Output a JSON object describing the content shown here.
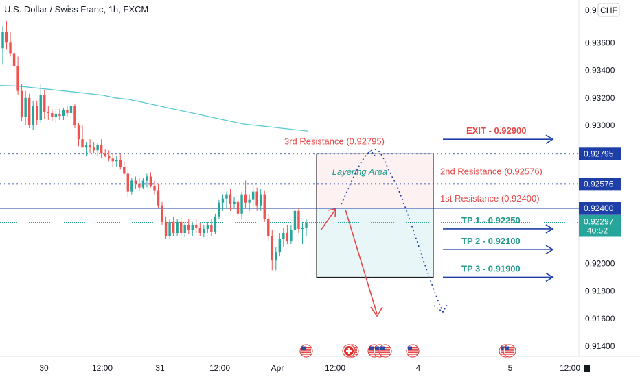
{
  "header": {
    "symbol_title": "U.S. Dollar / Swiss Franc, 1h, FXCM",
    "currency_button": "CHF"
  },
  "colors": {
    "up": "#26a69a",
    "down": "#ef5350",
    "level_blue": "#1e3fa8",
    "ma_line": "#5cc9d1",
    "resistance_text": "#e54848",
    "tp_text": "#1f9a8a",
    "layering_text": "#1f9a8a"
  },
  "chart_data": {
    "type": "candlestick",
    "ylim": [
      0.9135,
      0.9385
    ],
    "y_ticks": [
      "0.93600",
      "0.93400",
      "0.93200",
      "0.93000",
      "0.92000",
      "0.91800",
      "0.91600",
      "0.91400"
    ],
    "x_ticks": [
      "30",
      "12:00",
      "31",
      "12:00",
      "Apr",
      "12:00",
      "4",
      "5",
      "12:00"
    ],
    "candles": [
      {
        "o": 0.9356,
        "h": 0.9372,
        "l": 0.9344,
        "c": 0.9368
      },
      {
        "o": 0.9368,
        "h": 0.9376,
        "l": 0.9355,
        "c": 0.936
      },
      {
        "o": 0.936,
        "h": 0.9368,
        "l": 0.935,
        "c": 0.9352
      },
      {
        "o": 0.9352,
        "h": 0.936,
        "l": 0.934,
        "c": 0.9343
      },
      {
        "o": 0.9343,
        "h": 0.935,
        "l": 0.9322,
        "c": 0.9325
      },
      {
        "o": 0.9325,
        "h": 0.933,
        "l": 0.9303,
        "c": 0.9306
      },
      {
        "o": 0.9306,
        "h": 0.9325,
        "l": 0.93,
        "c": 0.932
      },
      {
        "o": 0.932,
        "h": 0.9323,
        "l": 0.9298,
        "c": 0.93
      },
      {
        "o": 0.93,
        "h": 0.9318,
        "l": 0.9297,
        "c": 0.9314
      },
      {
        "o": 0.9314,
        "h": 0.9318,
        "l": 0.93,
        "c": 0.9304
      },
      {
        "o": 0.9304,
        "h": 0.933,
        "l": 0.9302,
        "c": 0.9322
      },
      {
        "o": 0.9322,
        "h": 0.9326,
        "l": 0.9305,
        "c": 0.931
      },
      {
        "o": 0.931,
        "h": 0.9314,
        "l": 0.9304,
        "c": 0.9309
      },
      {
        "o": 0.9309,
        "h": 0.9312,
        "l": 0.9303,
        "c": 0.9306
      },
      {
        "o": 0.9306,
        "h": 0.9312,
        "l": 0.9302,
        "c": 0.9308
      },
      {
        "o": 0.9308,
        "h": 0.9312,
        "l": 0.9304,
        "c": 0.9307
      },
      {
        "o": 0.9307,
        "h": 0.9313,
        "l": 0.9304,
        "c": 0.9311
      },
      {
        "o": 0.9311,
        "h": 0.9314,
        "l": 0.9306,
        "c": 0.9309
      },
      {
        "o": 0.9309,
        "h": 0.9316,
        "l": 0.9306,
        "c": 0.9314
      },
      {
        "o": 0.9314,
        "h": 0.9316,
        "l": 0.9298,
        "c": 0.93
      },
      {
        "o": 0.93,
        "h": 0.9302,
        "l": 0.9285,
        "c": 0.929
      },
      {
        "o": 0.929,
        "h": 0.93,
        "l": 0.9284,
        "c": 0.9284
      },
      {
        "o": 0.9284,
        "h": 0.9288,
        "l": 0.9278,
        "c": 0.9286
      },
      {
        "o": 0.9286,
        "h": 0.929,
        "l": 0.928,
        "c": 0.9284
      },
      {
        "o": 0.9284,
        "h": 0.9288,
        "l": 0.928,
        "c": 0.9282
      },
      {
        "o": 0.9282,
        "h": 0.9287,
        "l": 0.9278,
        "c": 0.9286
      },
      {
        "o": 0.9286,
        "h": 0.929,
        "l": 0.9276,
        "c": 0.928
      },
      {
        "o": 0.928,
        "h": 0.9283,
        "l": 0.9277,
        "c": 0.9278
      },
      {
        "o": 0.9278,
        "h": 0.9282,
        "l": 0.9274,
        "c": 0.9276
      },
      {
        "o": 0.9276,
        "h": 0.928,
        "l": 0.927,
        "c": 0.9274
      },
      {
        "o": 0.9274,
        "h": 0.9278,
        "l": 0.927,
        "c": 0.9275
      },
      {
        "o": 0.9275,
        "h": 0.9279,
        "l": 0.9268,
        "c": 0.927
      },
      {
        "o": 0.927,
        "h": 0.9274,
        "l": 0.9264,
        "c": 0.9265
      },
      {
        "o": 0.9265,
        "h": 0.9268,
        "l": 0.9248,
        "c": 0.9252
      },
      {
        "o": 0.9252,
        "h": 0.9262,
        "l": 0.925,
        "c": 0.926
      },
      {
        "o": 0.926,
        "h": 0.9263,
        "l": 0.9254,
        "c": 0.9258
      },
      {
        "o": 0.9258,
        "h": 0.9262,
        "l": 0.9253,
        "c": 0.9255
      },
      {
        "o": 0.9255,
        "h": 0.9262,
        "l": 0.9254,
        "c": 0.926
      },
      {
        "o": 0.926,
        "h": 0.9265,
        "l": 0.9255,
        "c": 0.9263
      },
      {
        "o": 0.9263,
        "h": 0.9266,
        "l": 0.9255,
        "c": 0.9256
      },
      {
        "o": 0.9256,
        "h": 0.926,
        "l": 0.925,
        "c": 0.9253
      },
      {
        "o": 0.9253,
        "h": 0.9258,
        "l": 0.924,
        "c": 0.9242
      },
      {
        "o": 0.9242,
        "h": 0.9245,
        "l": 0.9228,
        "c": 0.923
      },
      {
        "o": 0.923,
        "h": 0.9234,
        "l": 0.9218,
        "c": 0.922
      },
      {
        "o": 0.922,
        "h": 0.9232,
        "l": 0.9218,
        "c": 0.923
      },
      {
        "o": 0.923,
        "h": 0.9234,
        "l": 0.922,
        "c": 0.9222
      },
      {
        "o": 0.9222,
        "h": 0.9232,
        "l": 0.922,
        "c": 0.923
      },
      {
        "o": 0.923,
        "h": 0.9234,
        "l": 0.922,
        "c": 0.9222
      },
      {
        "o": 0.9222,
        "h": 0.923,
        "l": 0.9219,
        "c": 0.9228
      },
      {
        "o": 0.9228,
        "h": 0.9232,
        "l": 0.9221,
        "c": 0.9224
      },
      {
        "o": 0.9224,
        "h": 0.923,
        "l": 0.922,
        "c": 0.9228
      },
      {
        "o": 0.9228,
        "h": 0.9232,
        "l": 0.9222,
        "c": 0.9226
      },
      {
        "o": 0.9226,
        "h": 0.9229,
        "l": 0.922,
        "c": 0.9222
      },
      {
        "o": 0.9222,
        "h": 0.9228,
        "l": 0.9219,
        "c": 0.9225
      },
      {
        "o": 0.9225,
        "h": 0.923,
        "l": 0.9222,
        "c": 0.9228
      },
      {
        "o": 0.9228,
        "h": 0.9232,
        "l": 0.922,
        "c": 0.9223
      },
      {
        "o": 0.9223,
        "h": 0.9236,
        "l": 0.9221,
        "c": 0.9234
      },
      {
        "o": 0.9234,
        "h": 0.9246,
        "l": 0.9232,
        "c": 0.9244
      },
      {
        "o": 0.9244,
        "h": 0.925,
        "l": 0.9238,
        "c": 0.9247
      },
      {
        "o": 0.9247,
        "h": 0.9252,
        "l": 0.924,
        "c": 0.925
      },
      {
        "o": 0.925,
        "h": 0.9254,
        "l": 0.9238,
        "c": 0.9243
      },
      {
        "o": 0.9243,
        "h": 0.9248,
        "l": 0.924,
        "c": 0.9245
      },
      {
        "o": 0.9245,
        "h": 0.925,
        "l": 0.923,
        "c": 0.9236
      },
      {
        "o": 0.9236,
        "h": 0.9252,
        "l": 0.9232,
        "c": 0.925
      },
      {
        "o": 0.925,
        "h": 0.926,
        "l": 0.924,
        "c": 0.9244
      },
      {
        "o": 0.9244,
        "h": 0.925,
        "l": 0.9238,
        "c": 0.9246
      },
      {
        "o": 0.9246,
        "h": 0.9256,
        "l": 0.924,
        "c": 0.9252
      },
      {
        "o": 0.9252,
        "h": 0.9255,
        "l": 0.9238,
        "c": 0.9242
      },
      {
        "o": 0.9242,
        "h": 0.9254,
        "l": 0.9238,
        "c": 0.925
      },
      {
        "o": 0.925,
        "h": 0.9253,
        "l": 0.923,
        "c": 0.9232
      },
      {
        "o": 0.9232,
        "h": 0.9236,
        "l": 0.9216,
        "c": 0.922
      },
      {
        "o": 0.922,
        "h": 0.9224,
        "l": 0.9195,
        "c": 0.9202
      },
      {
        "o": 0.9202,
        "h": 0.9212,
        "l": 0.9195,
        "c": 0.9208
      },
      {
        "o": 0.9208,
        "h": 0.9222,
        "l": 0.9205,
        "c": 0.9218
      },
      {
        "o": 0.9218,
        "h": 0.9226,
        "l": 0.9212,
        "c": 0.9222
      },
      {
        "o": 0.9222,
        "h": 0.9228,
        "l": 0.9214,
        "c": 0.9216
      },
      {
        "o": 0.9216,
        "h": 0.9228,
        "l": 0.9214,
        "c": 0.9224
      },
      {
        "o": 0.9224,
        "h": 0.924,
        "l": 0.9222,
        "c": 0.9238
      },
      {
        "o": 0.9238,
        "h": 0.924,
        "l": 0.9222,
        "c": 0.9225
      },
      {
        "o": 0.9225,
        "h": 0.923,
        "l": 0.9214,
        "c": 0.9226
      },
      {
        "o": 0.9226,
        "h": 0.9232,
        "l": 0.922,
        "c": 0.9229
      }
    ],
    "moving_average": [
      0.9329,
      0.93288,
      0.9328,
      0.9327,
      0.9326,
      0.9325,
      0.9324,
      0.9323,
      0.9322,
      0.932,
      0.9319,
      0.9317,
      0.9315,
      0.9313,
      0.9311,
      0.9309,
      0.9307,
      0.9305,
      0.9303,
      0.9301,
      0.93,
      0.9299,
      0.9298,
      0.9297,
      0.9296
    ],
    "levels": [
      {
        "value": 0.92795,
        "label": "3rd Resistance (0.92795)",
        "tag": "0.92795",
        "style": "dotted"
      },
      {
        "value": 0.92576,
        "label": "2nd Resistance (0.92576)",
        "tag": "0.92576",
        "style": "dotted"
      },
      {
        "value": 0.924,
        "label": "1st Resistance (0.92400)",
        "tag": "0.92400",
        "style": "solid"
      }
    ],
    "current_price": {
      "value": 0.92297,
      "tag": "0.92297",
      "countdown": "40:52"
    },
    "targets": [
      {
        "label": "EXIT - 0.92900",
        "value": 0.929,
        "color": "#e54848"
      },
      {
        "label": "TP 1 - 0.92250",
        "value": 0.9225,
        "color": "#1f9a8a"
      },
      {
        "label": "TP 2 - 0.92100",
        "value": 0.921,
        "color": "#1f9a8a"
      },
      {
        "label": "TP 3 - 0.91900",
        "value": 0.919,
        "color": "#1f9a8a"
      }
    ],
    "position_box": {
      "top": 0.92795,
      "mid": 0.924,
      "bottom": 0.919
    },
    "layering_label": "Layering Area",
    "grid": false
  }
}
